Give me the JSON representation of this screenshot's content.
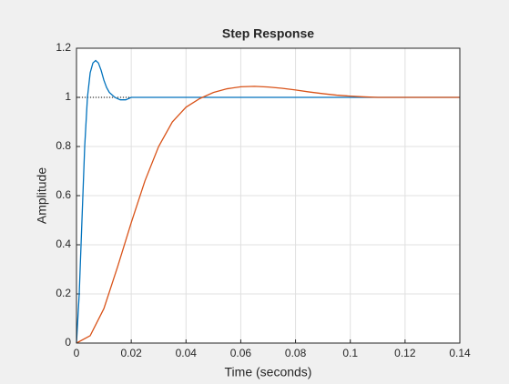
{
  "chart_data": {
    "type": "line",
    "title": "Step Response",
    "xlabel": "Time (seconds)",
    "ylabel": "Amplitude",
    "xlim": [
      0,
      0.14
    ],
    "xticks": [
      0,
      0.02,
      0.04,
      0.06,
      0.08,
      0.1,
      0.12,
      0.14
    ],
    "ylim": [
      0,
      1.2
    ],
    "yticks": [
      0,
      0.2,
      0.4,
      0.6,
      0.8,
      1,
      1.2
    ],
    "grid": true,
    "steady_state": 1,
    "series": [
      {
        "color": "#0072bd",
        "x": [
          0,
          0.001,
          0.002,
          0.003,
          0.004,
          0.005,
          0.006,
          0.007,
          0.008,
          0.009,
          0.01,
          0.011,
          0.012,
          0.014,
          0.016,
          0.018,
          0.02,
          0.025,
          0.03,
          0.04,
          0.06,
          0.08,
          0.1,
          0.12,
          0.14
        ],
        "values": [
          0,
          0.2,
          0.5,
          0.8,
          1.0,
          1.1,
          1.14,
          1.15,
          1.14,
          1.11,
          1.07,
          1.04,
          1.02,
          1.0,
          0.99,
          0.99,
          1.0,
          1.0,
          1.0,
          1.0,
          1.0,
          1.0,
          1.0,
          1.0,
          1.0
        ]
      },
      {
        "color": "#d95319",
        "x": [
          0,
          0.005,
          0.01,
          0.015,
          0.02,
          0.025,
          0.03,
          0.035,
          0.04,
          0.045,
          0.05,
          0.055,
          0.06,
          0.065,
          0.07,
          0.075,
          0.08,
          0.085,
          0.09,
          0.095,
          0.1,
          0.105,
          0.11,
          0.12,
          0.13,
          0.14
        ],
        "values": [
          0,
          0.03,
          0.14,
          0.31,
          0.49,
          0.66,
          0.8,
          0.9,
          0.96,
          0.995,
          1.02,
          1.035,
          1.043,
          1.045,
          1.042,
          1.037,
          1.03,
          1.022,
          1.015,
          1.009,
          1.005,
          1.002,
          1.0,
          1.0,
          1.0,
          1.0
        ]
      }
    ]
  }
}
